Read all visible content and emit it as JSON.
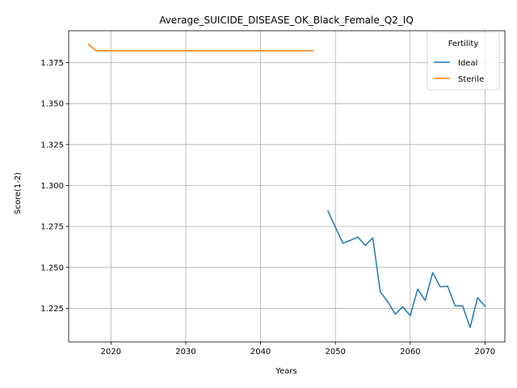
{
  "chart_data": {
    "type": "line",
    "title": "Average_SUICIDE_DISEASE_OK_Black_Female_Q2_IQ",
    "xlabel": "Years",
    "ylabel": "Score(1-2)",
    "xlim": [
      2014.35,
      2072.65
    ],
    "ylim": [
      1.2045,
      1.3945
    ],
    "xticks": [
      2020,
      2030,
      2040,
      2050,
      2060,
      2070
    ],
    "xtick_labels": [
      "2020",
      "2030",
      "2040",
      "2050",
      "2060",
      "2070"
    ],
    "yticks": [
      1.225,
      1.25,
      1.275,
      1.3,
      1.325,
      1.35,
      1.375
    ],
    "ytick_labels": [
      "1.225",
      "1.250",
      "1.275",
      "1.300",
      "1.325",
      "1.350",
      "1.375"
    ],
    "grid": true,
    "legend": {
      "title": "Fertility",
      "placement": "top-right"
    },
    "series": [
      {
        "name": "Ideal",
        "color": "#1f77b4",
        "x": [
          2049,
          2050,
          2051,
          2052,
          2053,
          2054,
          2055,
          2056,
          2057,
          2058,
          2059,
          2060,
          2061,
          2062,
          2063,
          2064,
          2065,
          2066,
          2067,
          2068,
          2069,
          2070
        ],
        "y": [
          1.2845,
          1.2745,
          1.2648,
          1.2665,
          1.2685,
          1.2635,
          1.268,
          1.235,
          1.229,
          1.2215,
          1.226,
          1.2205,
          1.2368,
          1.2298,
          1.2468,
          1.2382,
          1.2385,
          1.2265,
          1.2265,
          1.2133,
          1.2315,
          1.2263
        ]
      },
      {
        "name": "Sterile",
        "color": "#ff7f0e",
        "x": [
          2017,
          2018,
          2019,
          2020,
          2025,
          2030,
          2035,
          2040,
          2045,
          2047
        ],
        "y": [
          1.3862,
          1.3823,
          1.3823,
          1.3823,
          1.3823,
          1.3823,
          1.3823,
          1.3823,
          1.3823,
          1.3823
        ]
      }
    ]
  }
}
